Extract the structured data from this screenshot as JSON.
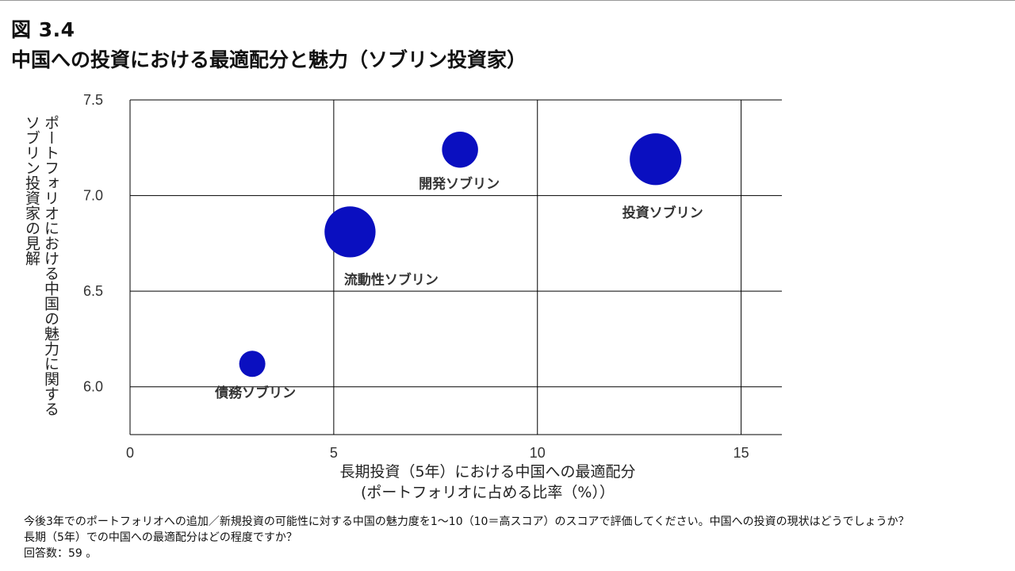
{
  "figure": {
    "number": "図 3.4",
    "title": "中国への投資における最適配分と魅力（ソブリン投資家）"
  },
  "chart_data": {
    "type": "bubble",
    "title": "中国への投資における最適配分と魅力（ソブリン投資家）",
    "xlabel": [
      "長期投資（5年）における中国への最適配分",
      "(ポートフォリオに占める比率（%））"
    ],
    "ylabel": "ポートフォリオにおける中国の魅力に関するソブリン投資家の見解",
    "xlim": [
      0,
      16
    ],
    "ylim": [
      5.75,
      7.5
    ],
    "xticks": [
      0,
      5,
      10,
      15
    ],
    "xtick_labels": [
      "0",
      "5",
      "10",
      "15"
    ],
    "yticks": [
      6.0,
      6.5,
      7.0,
      7.5
    ],
    "ytick_labels": [
      "6.0",
      "6.5",
      "7.0",
      "7.5"
    ],
    "grid": true,
    "bubble_color": "#0a0fc0",
    "points": [
      {
        "label": "債務ソブリン",
        "x": 3.0,
        "y": 6.12,
        "size": 1.0
      },
      {
        "label": "流動性ソブリン",
        "x": 5.4,
        "y": 6.81,
        "size": 3.8
      },
      {
        "label": "開発ソブリン",
        "x": 8.1,
        "y": 7.24,
        "size": 1.9
      },
      {
        "label": "投資ソブリン",
        "x": 12.9,
        "y": 7.19,
        "size": 3.9
      }
    ]
  },
  "notes": {
    "line1": "今後3年でのポートフォリオへの追加／新規投資の可能性に対する中国の魅力度を1～10（10＝高スコア）のスコアで評価してください。中国への投資の現状はどうでしょうか？",
    "line2": "長期（5年）での中国への最適配分はどの程度ですか？",
    "line3": "回答数：59 。"
  }
}
